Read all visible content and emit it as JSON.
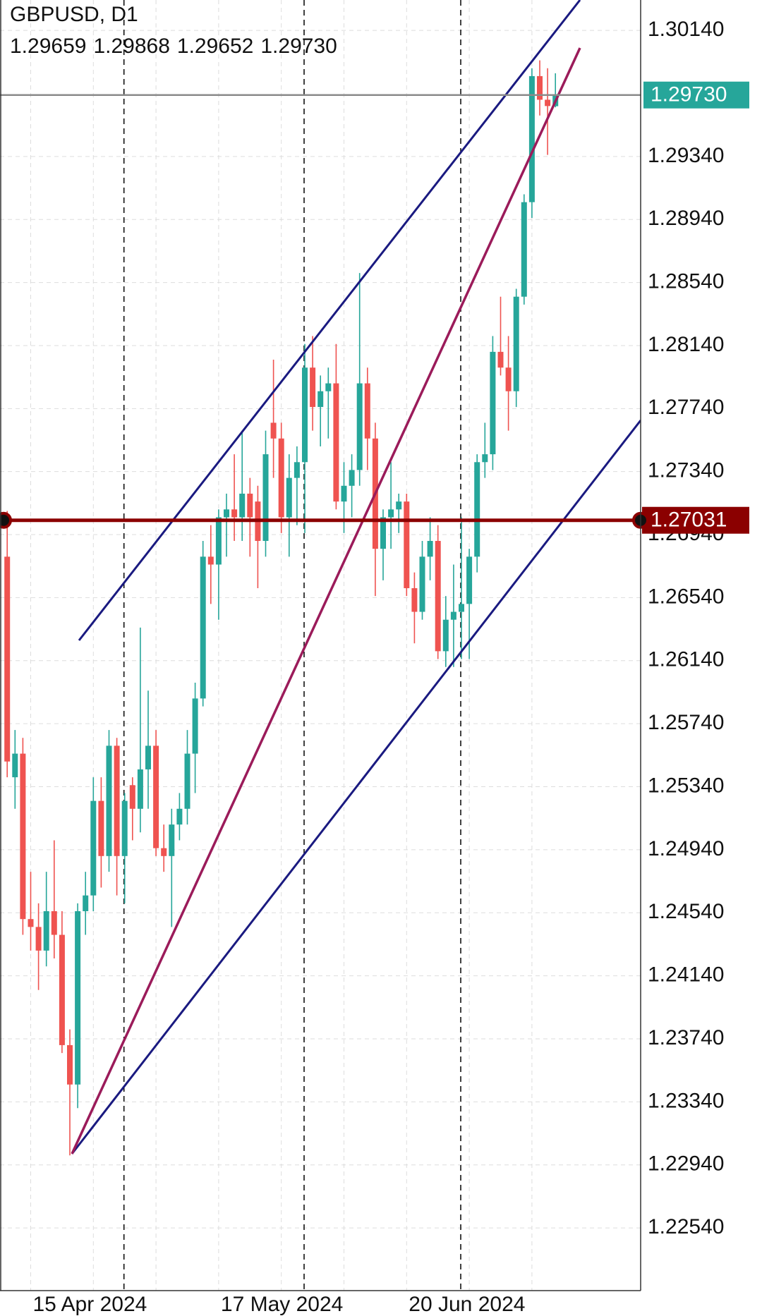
{
  "chart_data": {
    "type": "candlestick",
    "title": "GBPUSD, D1",
    "ohlc_labels": [
      "1.29659",
      "1.29868",
      "1.29652",
      "1.29730"
    ],
    "categories": [
      null,
      null,
      null,
      "15 Apr 2024",
      null,
      null,
      null,
      null,
      null,
      null,
      null,
      null,
      null,
      null,
      null,
      null,
      null,
      null,
      null,
      null,
      null,
      null,
      null,
      null,
      null,
      null,
      null,
      "17 May 2024",
      null,
      null,
      null,
      null,
      null,
      null,
      null,
      null,
      null,
      null,
      null,
      null,
      null,
      null,
      null,
      null,
      null,
      null,
      null,
      null,
      null,
      null,
      null,
      "20 Jun 2024",
      null,
      null,
      null,
      null,
      null,
      null,
      null,
      null,
      null,
      null,
      null,
      null,
      null,
      null,
      null,
      null,
      null,
      null,
      null
    ],
    "open": [
      1.268,
      1.254,
      1.2555,
      1.245,
      1.2445,
      1.243,
      1.2455,
      1.244,
      1.237,
      1.2345,
      1.2455,
      1.2465,
      1.2525,
      1.249,
      1.256,
      1.249,
      1.2535,
      1.252,
      1.2545,
      1.256,
      1.2495,
      1.249,
      1.251,
      1.252,
      1.2555,
      1.259,
      1.268,
      1.2675,
      1.2705,
      1.271,
      1.2705,
      1.272,
      1.2715,
      1.269,
      1.2765,
      1.2755,
      1.2705,
      1.273,
      1.274,
      1.28,
      1.2775,
      1.2785,
      1.279,
      1.2715,
      1.2725,
      1.2735,
      1.279,
      1.2755,
      1.2685,
      1.2705,
      1.271,
      1.2715,
      1.266,
      1.2645,
      1.268,
      1.269,
      1.262,
      1.264,
      1.2645,
      1.265,
      1.268,
      1.274,
      1.2745,
      1.281,
      1.28,
      1.2785,
      1.2845,
      1.2905,
      1.2985,
      1.297,
      1.29659
    ],
    "high": [
      1.2709,
      1.257,
      1.2565,
      1.248,
      1.246,
      1.248,
      1.25,
      1.2455,
      1.238,
      1.246,
      1.248,
      1.254,
      1.254,
      1.257,
      1.2565,
      1.253,
      1.254,
      1.2635,
      1.2595,
      1.257,
      1.251,
      1.252,
      1.253,
      1.257,
      1.26,
      1.269,
      1.27,
      1.271,
      1.272,
      1.2745,
      1.276,
      1.273,
      1.2725,
      1.276,
      1.2805,
      1.2765,
      1.2745,
      1.275,
      1.2815,
      1.282,
      1.2795,
      1.28,
      1.2815,
      1.274,
      1.2745,
      1.286,
      1.28,
      1.2765,
      1.271,
      1.274,
      1.272,
      1.272,
      1.267,
      1.269,
      1.2705,
      1.27,
      1.2655,
      1.2675,
      1.2705,
      1.2685,
      1.2745,
      1.2765,
      1.282,
      1.2845,
      1.282,
      1.285,
      1.291,
      1.299,
      1.2995,
      1.299,
      1.29868
    ],
    "low": [
      1.254,
      1.252,
      1.244,
      1.243,
      1.2405,
      1.242,
      1.2425,
      1.2365,
      1.23,
      1.233,
      1.244,
      1.2455,
      1.247,
      1.248,
      1.2465,
      1.246,
      1.25,
      1.2505,
      1.252,
      1.249,
      1.248,
      1.2445,
      1.25,
      1.251,
      1.253,
      1.2585,
      1.265,
      1.264,
      1.268,
      1.269,
      1.269,
      1.268,
      1.266,
      1.268,
      1.273,
      1.2695,
      1.268,
      1.27,
      1.2695,
      1.276,
      1.275,
      1.2755,
      1.271,
      1.2695,
      1.2705,
      1.2725,
      1.2735,
      1.2655,
      1.2665,
      1.2685,
      1.2695,
      1.2655,
      1.2625,
      1.264,
      1.2665,
      1.2615,
      1.261,
      1.261,
      1.2615,
      1.2615,
      1.267,
      1.273,
      1.2735,
      1.2795,
      1.276,
      1.2775,
      1.284,
      1.2895,
      1.296,
      1.2935,
      1.29652
    ],
    "close": [
      1.255,
      1.2555,
      1.245,
      1.2445,
      1.243,
      1.2455,
      1.244,
      1.237,
      1.2345,
      1.2455,
      1.2465,
      1.2525,
      1.249,
      1.256,
      1.249,
      1.2525,
      1.252,
      1.2545,
      1.256,
      1.2495,
      1.249,
      1.251,
      1.252,
      1.2555,
      1.259,
      1.268,
      1.2675,
      1.2705,
      1.271,
      1.2705,
      1.272,
      1.2705,
      1.269,
      1.2745,
      1.2755,
      1.2705,
      1.273,
      1.274,
      1.28,
      1.2775,
      1.2785,
      1.279,
      1.2715,
      1.2725,
      1.2735,
      1.279,
      1.2755,
      1.2685,
      1.2705,
      1.271,
      1.2715,
      1.266,
      1.2645,
      1.268,
      1.269,
      1.262,
      1.264,
      1.2645,
      1.265,
      1.268,
      1.274,
      1.2745,
      1.281,
      1.28,
      1.2785,
      1.2845,
      1.2905,
      1.2985,
      1.297,
      1.2966,
      1.2973
    ],
    "up_color": "#26a69a",
    "down_color": "#ef5350",
    "ylim": [
      1.22142,
      1.30333
    ],
    "yticks": [
      {
        "value": 1.3014,
        "label": "1.30140"
      },
      {
        "value": 1.2934,
        "label": "1.29340"
      },
      {
        "value": 1.2894,
        "label": "1.28940"
      },
      {
        "value": 1.2854,
        "label": "1.28540"
      },
      {
        "value": 1.2814,
        "label": "1.28140"
      },
      {
        "value": 1.2774,
        "label": "1.27740"
      },
      {
        "value": 1.2734,
        "label": "1.27340"
      },
      {
        "value": 1.2694,
        "label": "1.26940"
      },
      {
        "value": 1.2654,
        "label": "1.26540"
      },
      {
        "value": 1.2614,
        "label": "1.26140"
      },
      {
        "value": 1.2574,
        "label": "1.25740"
      },
      {
        "value": 1.2534,
        "label": "1.25340"
      },
      {
        "value": 1.2494,
        "label": "1.24940"
      },
      {
        "value": 1.2454,
        "label": "1.24540"
      },
      {
        "value": 1.2414,
        "label": "1.24140"
      },
      {
        "value": 1.2374,
        "label": "1.23740"
      },
      {
        "value": 1.2334,
        "label": "1.23340"
      },
      {
        "value": 1.2294,
        "label": "1.22940"
      },
      {
        "value": 1.2254,
        "label": "1.22540"
      }
    ],
    "grid": true,
    "current_price": {
      "value": 1.2973,
      "label": "1.29730",
      "color": "#26a69a"
    },
    "level": {
      "value": 1.27031,
      "label": "1.27031",
      "color": "#8b0000"
    }
  }
}
